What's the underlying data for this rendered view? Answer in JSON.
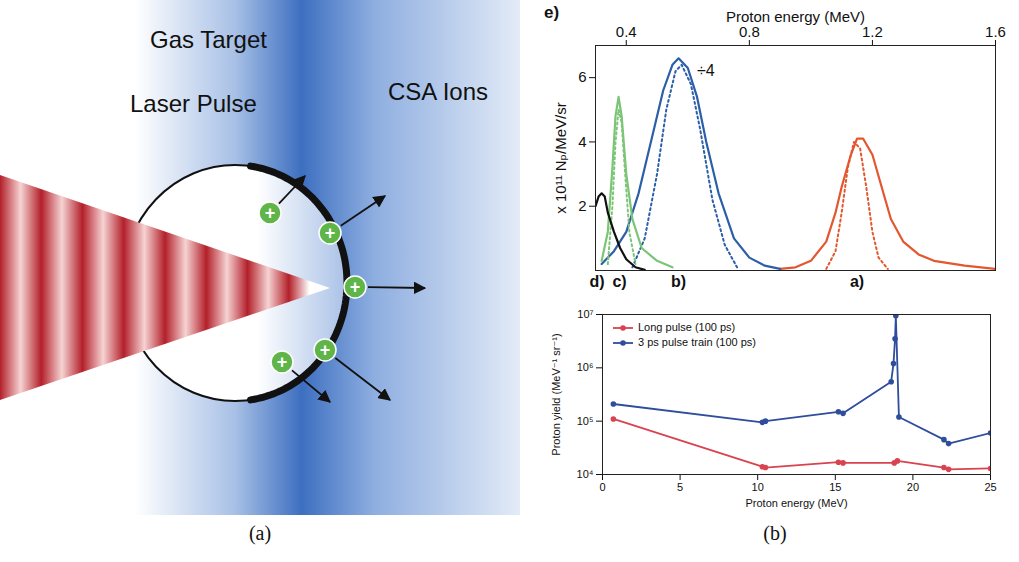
{
  "diagram": {
    "labels": {
      "gas_target": "Gas Target",
      "laser_pulse": "Laser Pulse",
      "ions": "CSA Ions"
    },
    "ion_symbol": "+",
    "caption": "(a)"
  },
  "chart_data": [
    {
      "type": "line",
      "panel_label": "e)",
      "xlabel": "Proton energy (MeV)",
      "ylabel": "x 10¹¹ Nₚ/MeV/sr",
      "xlim": [
        0.3,
        1.6
      ],
      "xticks": [
        0.4,
        0.8,
        1.2,
        1.6
      ],
      "ylim": [
        0,
        7
      ],
      "yticks": [
        2,
        4,
        6
      ],
      "series": [
        {
          "color": "#e4572e",
          "line_style": "solid",
          "x": [
            0.9,
            0.95,
            1.0,
            1.05,
            1.08,
            1.1,
            1.13,
            1.15,
            1.17,
            1.2,
            1.23,
            1.26,
            1.3,
            1.35,
            1.4,
            1.5,
            1.6
          ],
          "values": [
            0.05,
            0.1,
            0.3,
            0.9,
            1.8,
            2.6,
            3.6,
            4.1,
            4.1,
            3.6,
            2.6,
            1.6,
            0.9,
            0.5,
            0.3,
            0.15,
            0.05
          ]
        },
        {
          "color": "#e4572e",
          "line_style": "dotted",
          "x": [
            1.05,
            1.08,
            1.1,
            1.12,
            1.14,
            1.16,
            1.18,
            1.2,
            1.22,
            1.25
          ],
          "values": [
            0.05,
            0.6,
            1.8,
            3.2,
            4.0,
            3.8,
            2.6,
            1.2,
            0.4,
            0.05
          ]
        },
        {
          "color": "#2b5fa8",
          "line_style": "solid",
          "x": [
            0.32,
            0.36,
            0.4,
            0.44,
            0.48,
            0.52,
            0.55,
            0.57,
            0.6,
            0.63,
            0.66,
            0.7,
            0.75,
            0.8,
            0.85,
            0.9
          ],
          "values": [
            0.2,
            0.6,
            1.2,
            2.4,
            4.0,
            5.6,
            6.4,
            6.6,
            6.3,
            5.4,
            4.0,
            2.4,
            1.0,
            0.4,
            0.15,
            0.05
          ]
        },
        {
          "color": "#2b5fa8",
          "line_style": "dotted",
          "x": [
            0.42,
            0.46,
            0.5,
            0.53,
            0.56,
            0.58,
            0.61,
            0.64,
            0.68,
            0.72,
            0.76
          ],
          "values": [
            0.1,
            1.0,
            3.0,
            5.0,
            6.2,
            6.4,
            5.8,
            4.4,
            2.2,
            0.8,
            0.1
          ]
        },
        {
          "color": "#7cc576",
          "line_style": "solid",
          "x": [
            0.32,
            0.34,
            0.355,
            0.365,
            0.375,
            0.385,
            0.4,
            0.42,
            0.45,
            0.5,
            0.55
          ],
          "values": [
            0.3,
            1.2,
            3.2,
            4.8,
            5.4,
            4.8,
            3.0,
            1.6,
            0.7,
            0.3,
            0.1
          ]
        },
        {
          "color": "#7cc576",
          "line_style": "dotted",
          "x": [
            0.34,
            0.355,
            0.365,
            0.375,
            0.385,
            0.395,
            0.41,
            0.43
          ],
          "values": [
            0.2,
            2.0,
            4.0,
            5.0,
            4.6,
            3.2,
            1.2,
            0.2
          ]
        },
        {
          "color": "#111111",
          "line_style": "solid",
          "x": [
            0.3,
            0.31,
            0.32,
            0.33,
            0.34,
            0.36,
            0.38,
            0.4,
            0.43,
            0.46
          ],
          "values": [
            2.0,
            2.3,
            2.4,
            2.3,
            1.8,
            1.2,
            0.7,
            0.35,
            0.1,
            0.02
          ]
        }
      ],
      "annotations": [
        {
          "text": "÷4",
          "x": 0.63,
          "y": 6.2
        },
        {
          "text": "d)",
          "x": 0.305
        },
        {
          "text": "c)",
          "x": 0.378
        },
        {
          "text": "b)",
          "x": 0.57
        },
        {
          "text": "a)",
          "x": 1.15
        }
      ]
    },
    {
      "type": "line",
      "marker": "circle",
      "xlabel": "Proton energy (MeV)",
      "ylabel": "Proton yield (MeV⁻¹ sr⁻¹)",
      "log": "y",
      "xlim": [
        0,
        25
      ],
      "xticks": [
        0,
        5,
        10,
        15,
        20,
        25
      ],
      "ylim": [
        10000,
        10000000
      ],
      "yticks": [
        {
          "value": 10000,
          "label": "10⁴"
        },
        {
          "value": 100000,
          "label": "10⁵"
        },
        {
          "value": 1000000,
          "label": "10⁶"
        },
        {
          "value": 10000000,
          "label": "10⁷"
        }
      ],
      "legend": "top-left",
      "series": [
        {
          "name": "Long pulse (100 ps)",
          "color": "#d9434f",
          "x": [
            0.7,
            10.3,
            10.5,
            15.2,
            15.5,
            18.8,
            19.0,
            22.0,
            22.3,
            25
          ],
          "values": [
            110000,
            14000,
            13500,
            17000,
            16500,
            16500,
            18000,
            13500,
            12500,
            13000
          ]
        },
        {
          "name": "3 ps pulse train (100 ps)",
          "color": "#2e4d9c",
          "x": [
            0.7,
            10.3,
            10.5,
            15.2,
            15.5,
            18.6,
            18.75,
            18.85,
            18.9,
            19.1,
            22.0,
            22.3,
            25
          ],
          "values": [
            210000,
            95000,
            100000,
            150000,
            140000,
            550000,
            1200000,
            3500000,
            9500000,
            120000,
            45000,
            38000,
            60000
          ]
        }
      ]
    }
  ],
  "figure_caption": "(b)"
}
